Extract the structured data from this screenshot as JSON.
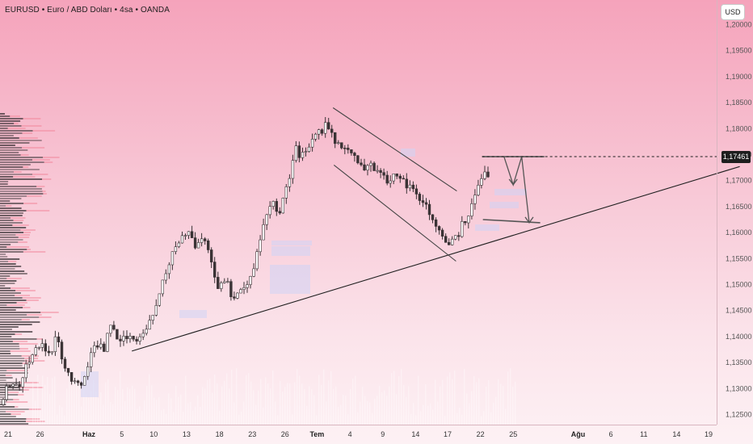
{
  "header": {
    "title": "EURUSD • Euro / ABD Doları • 4sa • OANDA",
    "currency": "USD"
  },
  "price_marker": {
    "value": "1,17461"
  },
  "colors": {
    "background_top": "#f5a3bb",
    "background_bottom": "#fdf1f4",
    "candle": "#3a3235",
    "volume_profile": "#2a2528",
    "volume_profile_pink": "#f28a9f",
    "trendline": "#1f1f1f",
    "price_tag": "#1e1e1e"
  },
  "chart_data": {
    "type": "candlestick",
    "symbol": "EURUSD",
    "interval": "4sa",
    "ylim": [
      1.1235,
      1.2075
    ],
    "y_ticks": [
      1.125,
      1.13,
      1.135,
      1.14,
      1.145,
      1.15,
      1.155,
      1.16,
      1.165,
      1.17,
      1.175,
      1.18,
      1.185,
      1.19,
      1.195,
      1.2
    ],
    "y_tick_labels": [
      "1,12500",
      "1,13000",
      "1,13500",
      "1,14000",
      "1,14500",
      "1,15000",
      "1,15500",
      "1,16000",
      "1,16500",
      "1,17000",
      "1,17500",
      "1,18000",
      "1,18500",
      "1,19000",
      "1,19500",
      "1,20000"
    ],
    "x_ticks": [
      {
        "label": "21",
        "pos": 0
      },
      {
        "label": "26",
        "pos": 3.8
      },
      {
        "label": "Haz",
        "pos": 9.6,
        "major": true
      },
      {
        "label": "5",
        "pos": 13.5
      },
      {
        "label": "10",
        "pos": 17.3
      },
      {
        "label": "13",
        "pos": 21.2
      },
      {
        "label": "18",
        "pos": 25.1
      },
      {
        "label": "23",
        "pos": 29
      },
      {
        "label": "26",
        "pos": 32.9
      },
      {
        "label": "Tem",
        "pos": 36.7,
        "major": true
      },
      {
        "label": "4",
        "pos": 40.6
      },
      {
        "label": "9",
        "pos": 44.5
      },
      {
        "label": "14",
        "pos": 48.4
      },
      {
        "label": "17",
        "pos": 52.2
      },
      {
        "label": "22",
        "pos": 56.1
      },
      {
        "label": "25",
        "pos": 60
      },
      {
        "label": "Ağu",
        "pos": 67.7,
        "major": true
      },
      {
        "label": "6",
        "pos": 71.6
      },
      {
        "label": "11",
        "pos": 75.5
      },
      {
        "label": "14",
        "pos": 79.4
      },
      {
        "label": "19",
        "pos": 83.2
      }
    ],
    "x_range": [
      -0.5,
      87.5
    ],
    "closes": [
      1.1285,
      1.1315,
      1.13,
      1.134,
      1.137,
      1.1395,
      1.136,
      1.14,
      1.134,
      1.132,
      1.13,
      1.135,
      1.139,
      1.1375,
      1.142,
      1.1385,
      1.14,
      1.1395,
      1.141,
      1.143,
      1.147,
      1.152,
      1.156,
      1.158,
      1.161,
      1.157,
      1.1595,
      1.154,
      1.149,
      1.1505,
      1.1465,
      1.149,
      1.15,
      1.1565,
      1.162,
      1.166,
      1.164,
      1.17,
      1.176,
      1.1745,
      1.177,
      1.179,
      1.181,
      1.178,
      1.177,
      1.176,
      1.1745,
      1.172,
      1.173,
      1.1715,
      1.17,
      1.172,
      1.17,
      1.168,
      1.167,
      1.165,
      1.162,
      1.16,
      1.158,
      1.1595,
      1.1625,
      1.1655,
      1.17,
      1.1715
    ],
    "current_price": 1.17461,
    "drawings": {
      "ascending_trendline": [
        [
          14.7,
          1.1372
        ],
        [
          86.9,
          1.1727
        ]
      ],
      "descending_channel_upper": [
        [
          38.6,
          1.184
        ],
        [
          53.3,
          1.168
        ]
      ],
      "descending_channel_lower": [
        [
          38.7,
          1.173
        ],
        [
          53.2,
          1.1545
        ]
      ],
      "resistance_line": [
        [
          56.3,
          1.1746
        ],
        [
          63.7,
          1.1746
        ]
      ],
      "support_line": [
        [
          56.4,
          1.1625
        ],
        [
          63.2,
          1.1619
        ]
      ],
      "projection_path": [
        [
          58.9,
          1.1746
        ],
        [
          60.0,
          1.1692
        ],
        [
          61.0,
          1.1746
        ],
        [
          61.9,
          1.1619
        ]
      ]
    }
  }
}
